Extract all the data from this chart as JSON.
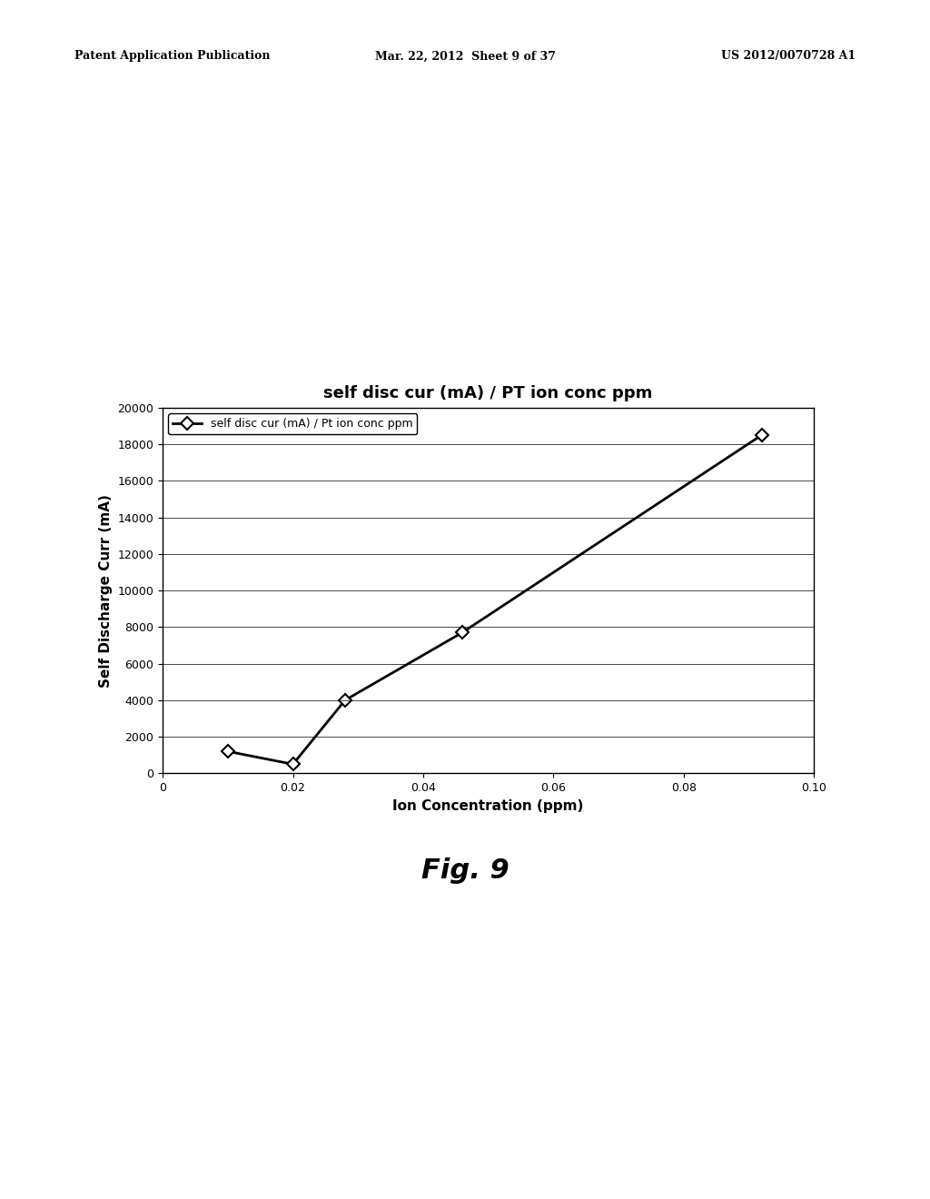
{
  "title": "self disc cur (mA) / PT ion conc ppm",
  "xlabel": "Ion Concentration (ppm)",
  "ylabel": "Self Discharge Curr (mA)",
  "legend_label": "self disc cur (mA) / Pt ion conc ppm",
  "x_data": [
    0.01,
    0.02,
    0.028,
    0.046,
    0.092
  ],
  "y_data": [
    1200,
    500,
    4000,
    7700,
    18500
  ],
  "xlim": [
    0,
    0.1
  ],
  "ylim": [
    0,
    20000
  ],
  "xticks": [
    0,
    0.02,
    0.04,
    0.06,
    0.08,
    0.1
  ],
  "yticks": [
    0,
    2000,
    4000,
    6000,
    8000,
    10000,
    12000,
    14000,
    16000,
    18000,
    20000
  ],
  "line_color": "#000000",
  "marker": "D",
  "fig_caption": "Fig. 9",
  "header_left": "Patent Application Publication",
  "header_center": "Mar. 22, 2012  Sheet 9 of 37",
  "header_right": "US 2012/0070728 A1",
  "background_color": "#ffffff",
  "title_fontsize": 13,
  "axis_label_fontsize": 11,
  "tick_fontsize": 9,
  "legend_fontsize": 9,
  "caption_fontsize": 22,
  "header_fontsize": 9
}
